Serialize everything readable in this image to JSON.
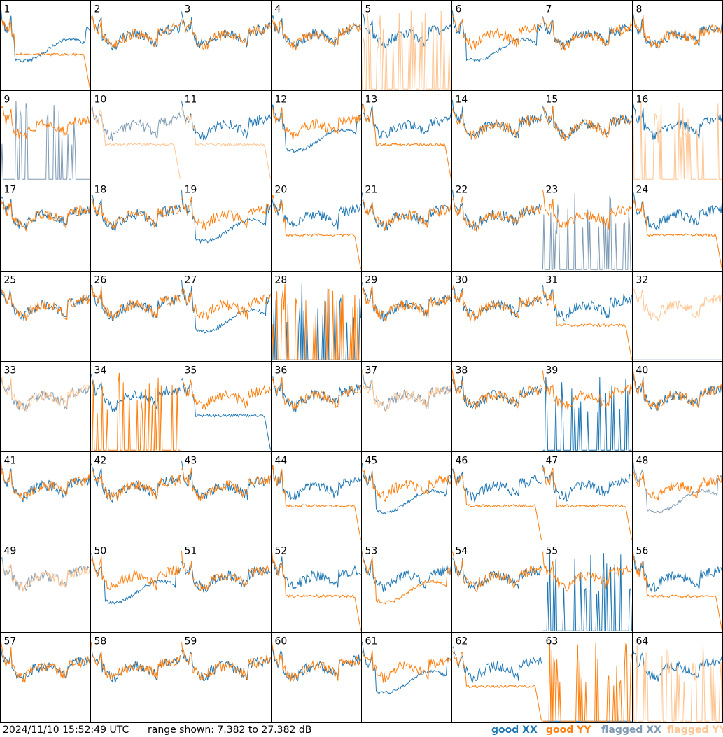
{
  "footer": {
    "timestamp": "2024/11/10 15:52:49 UTC",
    "range_text": "range shown: 7.382 to 27.382 dB"
  },
  "legend": [
    {
      "prefix": "good ",
      "pol": "XX",
      "color": "#1f77b4"
    },
    {
      "prefix": "good ",
      "pol": "YY",
      "color": "#ff7f0e"
    },
    {
      "prefix": "flagged ",
      "pol": "XX",
      "color": "#7f9bb4"
    },
    {
      "prefix": "flagged ",
      "pol": "YY",
      "color": "#ffc592"
    }
  ],
  "chart_data": {
    "type": "line",
    "grid": {
      "rows": 8,
      "cols": 8
    },
    "y_range_db": [
      7.382,
      27.382
    ],
    "colors": {
      "good_xx": "#1f77b4",
      "good_yy": "#ff7f0e",
      "flagged_xx": "#7f9bb4",
      "flagged_yy": "#ffc592"
    },
    "shape_names": [
      "normal",
      "sag",
      "drop",
      "spike",
      "dead"
    ],
    "panels": [
      {
        "label": "1",
        "xx": "sag",
        "yy": "drop",
        "xx_flag": false,
        "yy_flag": false
      },
      {
        "label": "2",
        "xx": "normal",
        "yy": "normal",
        "xx_flag": false,
        "yy_flag": false
      },
      {
        "label": "3",
        "xx": "normal",
        "yy": "normal",
        "xx_flag": false,
        "yy_flag": false
      },
      {
        "label": "4",
        "xx": "normal",
        "yy": "normal",
        "xx_flag": false,
        "yy_flag": false
      },
      {
        "label": "5",
        "xx": "normal",
        "yy": "spike",
        "xx_flag": false,
        "yy_flag": true
      },
      {
        "label": "6",
        "xx": "sag",
        "yy": "normal",
        "xx_flag": false,
        "yy_flag": false
      },
      {
        "label": "7",
        "xx": "normal",
        "yy": "normal",
        "xx_flag": false,
        "yy_flag": false
      },
      {
        "label": "8",
        "xx": "normal",
        "yy": "normal",
        "xx_flag": false,
        "yy_flag": false
      },
      {
        "label": "9",
        "xx": "spike",
        "yy": "normal",
        "xx_flag": true,
        "yy_flag": false
      },
      {
        "label": "10",
        "xx": "normal",
        "yy": "drop",
        "xx_flag": true,
        "yy_flag": true
      },
      {
        "label": "11",
        "xx": "normal",
        "yy": "drop",
        "xx_flag": false,
        "yy_flag": true
      },
      {
        "label": "12",
        "xx": "sag",
        "yy": "normal",
        "xx_flag": false,
        "yy_flag": false
      },
      {
        "label": "13",
        "xx": "normal",
        "yy": "drop",
        "xx_flag": false,
        "yy_flag": false
      },
      {
        "label": "14",
        "xx": "normal",
        "yy": "normal",
        "xx_flag": false,
        "yy_flag": false
      },
      {
        "label": "15",
        "xx": "normal",
        "yy": "normal",
        "xx_flag": false,
        "yy_flag": false
      },
      {
        "label": "16",
        "xx": "normal",
        "yy": "spike",
        "xx_flag": false,
        "yy_flag": true
      },
      {
        "label": "17",
        "xx": "normal",
        "yy": "normal",
        "xx_flag": false,
        "yy_flag": false
      },
      {
        "label": "18",
        "xx": "normal",
        "yy": "normal",
        "xx_flag": false,
        "yy_flag": false
      },
      {
        "label": "19",
        "xx": "sag",
        "yy": "normal",
        "xx_flag": false,
        "yy_flag": false
      },
      {
        "label": "20",
        "xx": "normal",
        "yy": "drop",
        "xx_flag": false,
        "yy_flag": false
      },
      {
        "label": "21",
        "xx": "normal",
        "yy": "normal",
        "xx_flag": false,
        "yy_flag": false
      },
      {
        "label": "22",
        "xx": "normal",
        "yy": "normal",
        "xx_flag": false,
        "yy_flag": false
      },
      {
        "label": "23",
        "xx": "spike",
        "yy": "normal",
        "xx_flag": true,
        "yy_flag": false
      },
      {
        "label": "24",
        "xx": "normal",
        "yy": "drop",
        "xx_flag": false,
        "yy_flag": false
      },
      {
        "label": "25",
        "xx": "normal",
        "yy": "normal",
        "xx_flag": false,
        "yy_flag": false
      },
      {
        "label": "26",
        "xx": "normal",
        "yy": "normal",
        "xx_flag": false,
        "yy_flag": false
      },
      {
        "label": "27",
        "xx": "sag",
        "yy": "normal",
        "xx_flag": false,
        "yy_flag": false
      },
      {
        "label": "28",
        "xx": "spike",
        "yy": "spike",
        "xx_flag": false,
        "yy_flag": false
      },
      {
        "label": "29",
        "xx": "normal",
        "yy": "normal",
        "xx_flag": false,
        "yy_flag": false
      },
      {
        "label": "30",
        "xx": "normal",
        "yy": "normal",
        "xx_flag": false,
        "yy_flag": false
      },
      {
        "label": "31",
        "xx": "normal",
        "yy": "drop",
        "xx_flag": false,
        "yy_flag": false
      },
      {
        "label": "32",
        "xx": "dead",
        "yy": "normal",
        "xx_flag": true,
        "yy_flag": true
      },
      {
        "label": "33",
        "xx": "normal",
        "yy": "normal",
        "xx_flag": true,
        "yy_flag": true
      },
      {
        "label": "34",
        "xx": "normal",
        "yy": "spike",
        "xx_flag": false,
        "yy_flag": false
      },
      {
        "label": "35",
        "xx": "drop",
        "yy": "normal",
        "xx_flag": false,
        "yy_flag": false
      },
      {
        "label": "36",
        "xx": "normal",
        "yy": "normal",
        "xx_flag": false,
        "yy_flag": false
      },
      {
        "label": "37",
        "xx": "normal",
        "yy": "normal",
        "xx_flag": true,
        "yy_flag": true
      },
      {
        "label": "38",
        "xx": "normal",
        "yy": "normal",
        "xx_flag": false,
        "yy_flag": false
      },
      {
        "label": "39",
        "xx": "spike",
        "yy": "normal",
        "xx_flag": false,
        "yy_flag": false
      },
      {
        "label": "40",
        "xx": "normal",
        "yy": "normal",
        "xx_flag": false,
        "yy_flag": false
      },
      {
        "label": "41",
        "xx": "normal",
        "yy": "normal",
        "xx_flag": false,
        "yy_flag": false
      },
      {
        "label": "42",
        "xx": "normal",
        "yy": "normal",
        "xx_flag": false,
        "yy_flag": false
      },
      {
        "label": "43",
        "xx": "normal",
        "yy": "normal",
        "xx_flag": false,
        "yy_flag": false
      },
      {
        "label": "44",
        "xx": "normal",
        "yy": "drop",
        "xx_flag": false,
        "yy_flag": false
      },
      {
        "label": "45",
        "xx": "sag",
        "yy": "normal",
        "xx_flag": false,
        "yy_flag": false
      },
      {
        "label": "46",
        "xx": "normal",
        "yy": "drop",
        "xx_flag": false,
        "yy_flag": false
      },
      {
        "label": "47",
        "xx": "normal",
        "yy": "drop",
        "xx_flag": false,
        "yy_flag": false
      },
      {
        "label": "48",
        "xx": "sag",
        "yy": "normal",
        "xx_flag": true,
        "yy_flag": false
      },
      {
        "label": "49",
        "xx": "normal",
        "yy": "normal",
        "xx_flag": true,
        "yy_flag": true
      },
      {
        "label": "50",
        "xx": "sag",
        "yy": "normal",
        "xx_flag": false,
        "yy_flag": false
      },
      {
        "label": "51",
        "xx": "normal",
        "yy": "normal",
        "xx_flag": false,
        "yy_flag": false
      },
      {
        "label": "52",
        "xx": "normal",
        "yy": "drop",
        "xx_flag": false,
        "yy_flag": false
      },
      {
        "label": "53",
        "xx": "normal",
        "yy": "sag",
        "xx_flag": false,
        "yy_flag": false
      },
      {
        "label": "54",
        "xx": "normal",
        "yy": "normal",
        "xx_flag": false,
        "yy_flag": false
      },
      {
        "label": "55",
        "xx": "spike",
        "yy": "normal",
        "xx_flag": false,
        "yy_flag": false
      },
      {
        "label": "56",
        "xx": "normal",
        "yy": "drop",
        "xx_flag": false,
        "yy_flag": false
      },
      {
        "label": "57",
        "xx": "normal",
        "yy": "normal",
        "xx_flag": false,
        "yy_flag": false
      },
      {
        "label": "58",
        "xx": "normal",
        "yy": "normal",
        "xx_flag": false,
        "yy_flag": false
      },
      {
        "label": "59",
        "xx": "normal",
        "yy": "normal",
        "xx_flag": false,
        "yy_flag": false
      },
      {
        "label": "60",
        "xx": "normal",
        "yy": "normal",
        "xx_flag": false,
        "yy_flag": false
      },
      {
        "label": "61",
        "xx": "sag",
        "yy": "normal",
        "xx_flag": false,
        "yy_flag": false
      },
      {
        "label": "62",
        "xx": "normal",
        "yy": "drop",
        "xx_flag": false,
        "yy_flag": false
      },
      {
        "label": "63",
        "xx": "dead",
        "yy": "spike",
        "xx_flag": false,
        "yy_flag": false
      },
      {
        "label": "64",
        "xx": "normal",
        "yy": "spike",
        "xx_flag": false,
        "yy_flag": true
      }
    ]
  }
}
